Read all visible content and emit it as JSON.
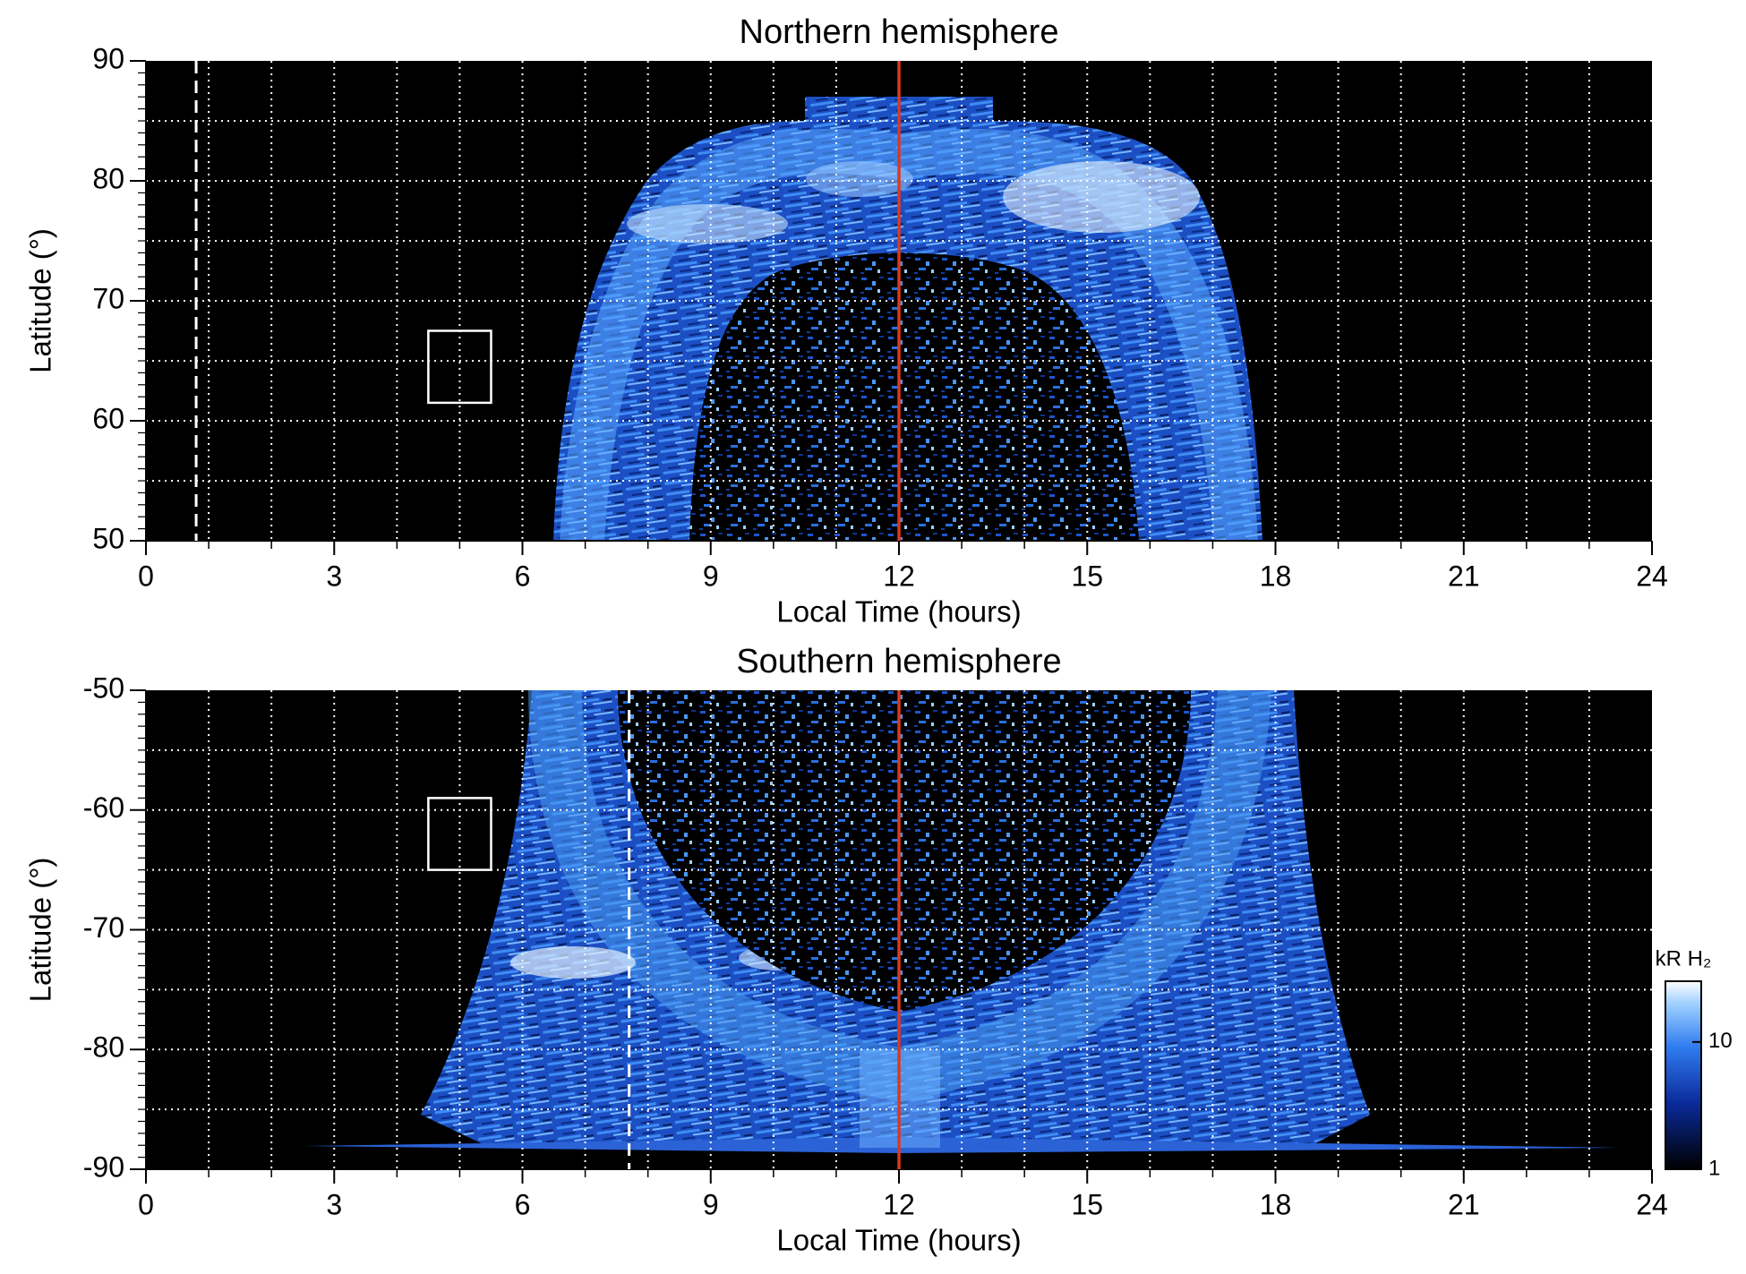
{
  "chart_data": [
    {
      "type": "heatmap",
      "title": "Northern hemisphere",
      "xlabel": "Local Time (hours)",
      "ylabel": "Latitude (°)",
      "xlim": [
        0,
        24
      ],
      "xticks": [
        0,
        3,
        6,
        9,
        12,
        15,
        18,
        21,
        24
      ],
      "ylim": [
        50,
        90
      ],
      "yticks": [
        50,
        60,
        70,
        80,
        90
      ],
      "x_grid_step": 1,
      "y_grid_step": 5,
      "y_minor_step": 1,
      "grid": true,
      "reference_line_x": 12,
      "reference_line_color": "#d9391e",
      "dashed_line_x": 0.8,
      "box": {
        "x": [
          4.5,
          5.5
        ],
        "y": [
          61.5,
          67.5
        ]
      }
    },
    {
      "type": "heatmap",
      "title": "Southern hemisphere",
      "xlabel": "Local Time (hours)",
      "ylabel": "Latitude (°)",
      "xlim": [
        0,
        24
      ],
      "xticks": [
        0,
        3,
        6,
        9,
        12,
        15,
        18,
        21,
        24
      ],
      "ylim": [
        -90,
        -50
      ],
      "yticks": [
        -90,
        -80,
        -70,
        -60,
        -50
      ],
      "x_grid_step": 1,
      "y_grid_step": 5,
      "y_minor_step": 1,
      "grid": true,
      "reference_line_x": 12,
      "reference_line_color": "#d9391e",
      "dashed_line_x": 7.7,
      "box": {
        "x": [
          4.5,
          5.5
        ],
        "y": [
          -65,
          -59
        ]
      },
      "colorbar": {
        "label": "kR H₂",
        "scale": "log",
        "lim": [
          1,
          30
        ],
        "ticks": [
          1,
          10
        ]
      }
    }
  ]
}
